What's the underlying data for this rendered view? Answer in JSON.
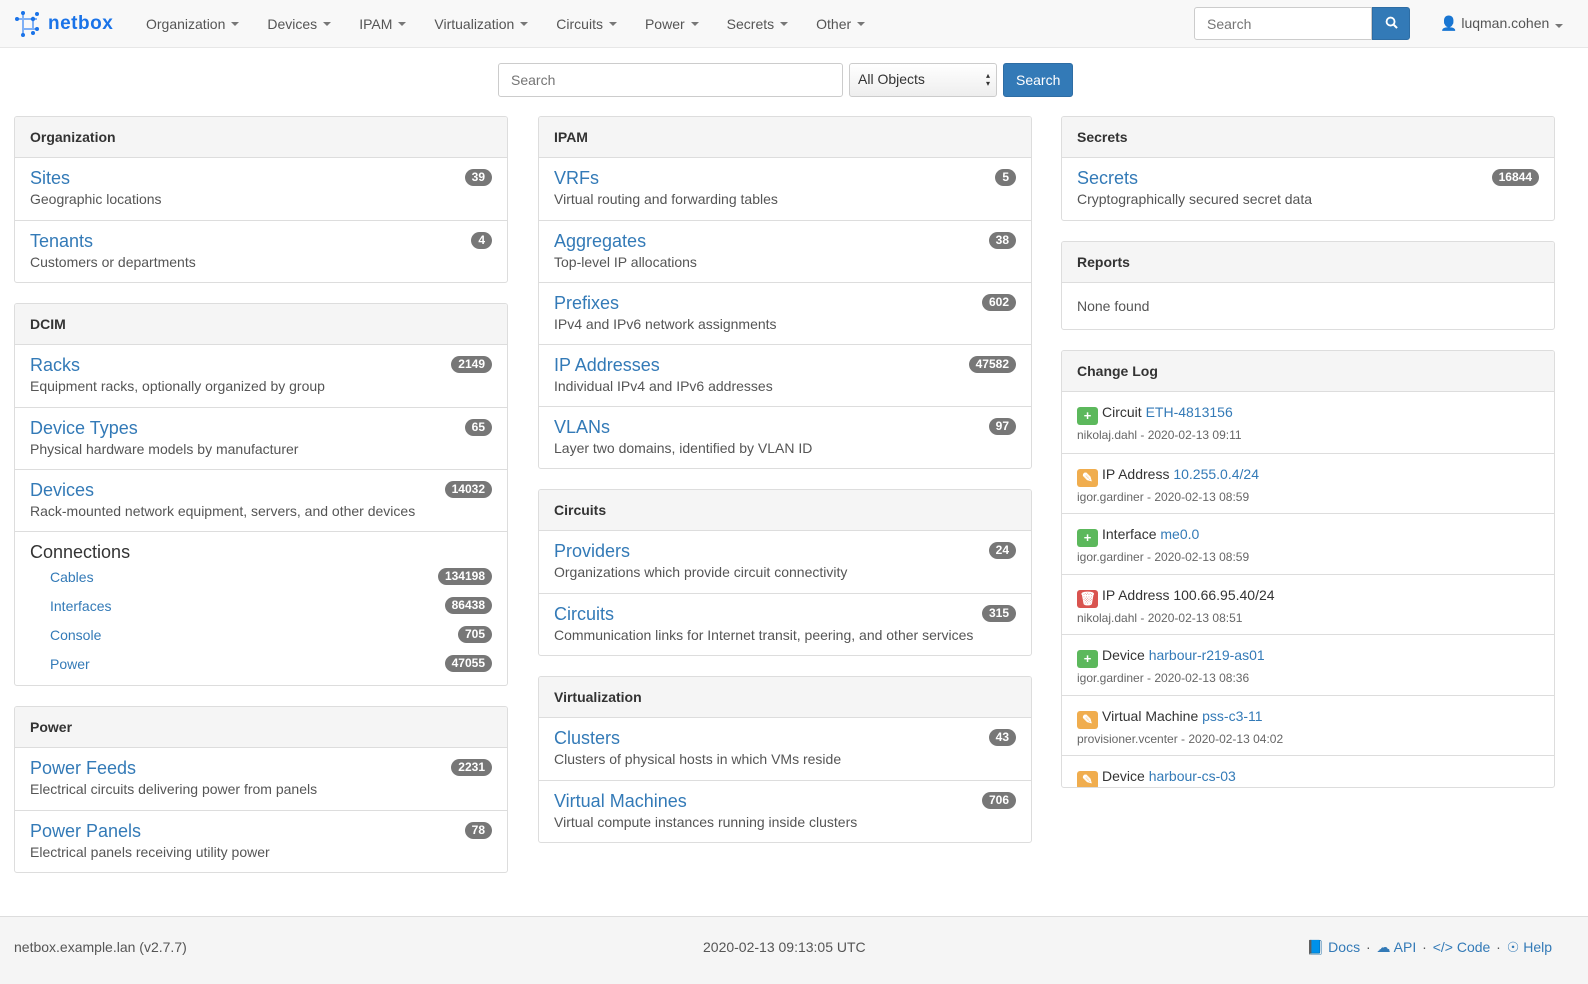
{
  "brand": "netbox",
  "nav": [
    "Organization",
    "Devices",
    "IPAM",
    "Virtualization",
    "Circuits",
    "Power",
    "Secrets",
    "Other"
  ],
  "nav_search": {
    "placeholder": "Search"
  },
  "user": "luqman.cohen",
  "search": {
    "placeholder": "Search",
    "scope": "All Objects",
    "button": "Search"
  },
  "columns": [
    [
      {
        "title": "Organization",
        "items": [
          {
            "label": "Sites",
            "desc": "Geographic locations",
            "count": "39"
          },
          {
            "label": "Tenants",
            "desc": "Customers or departments",
            "count": "4"
          }
        ]
      },
      {
        "title": "DCIM",
        "items": [
          {
            "label": "Racks",
            "desc": "Equipment racks, optionally organized by group",
            "count": "2149"
          },
          {
            "label": "Device Types",
            "desc": "Physical hardware models by manufacturer",
            "count": "65"
          },
          {
            "label": "Devices",
            "desc": "Rack-mounted network equipment, servers, and other devices",
            "count": "14032"
          }
        ],
        "connections": {
          "title": "Connections",
          "items": [
            {
              "label": "Cables",
              "count": "134198"
            },
            {
              "label": "Interfaces",
              "count": "86438"
            },
            {
              "label": "Console",
              "count": "705"
            },
            {
              "label": "Power",
              "count": "47055"
            }
          ]
        }
      },
      {
        "title": "Power",
        "items": [
          {
            "label": "Power Feeds",
            "desc": "Electrical circuits delivering power from panels",
            "count": "2231"
          },
          {
            "label": "Power Panels",
            "desc": "Electrical panels receiving utility power",
            "count": "78"
          }
        ]
      }
    ],
    [
      {
        "title": "IPAM",
        "items": [
          {
            "label": "VRFs",
            "desc": "Virtual routing and forwarding tables",
            "count": "5"
          },
          {
            "label": "Aggregates",
            "desc": "Top-level IP allocations",
            "count": "38"
          },
          {
            "label": "Prefixes",
            "desc": "IPv4 and IPv6 network assignments",
            "count": "602"
          },
          {
            "label": "IP Addresses",
            "desc": "Individual IPv4 and IPv6 addresses",
            "count": "47582"
          },
          {
            "label": "VLANs",
            "desc": "Layer two domains, identified by VLAN ID",
            "count": "97"
          }
        ]
      },
      {
        "title": "Circuits",
        "items": [
          {
            "label": "Providers",
            "desc": "Organizations which provide circuit connectivity",
            "count": "24"
          },
          {
            "label": "Circuits",
            "desc": "Communication links for Internet transit, peering, and other services",
            "count": "315"
          }
        ]
      },
      {
        "title": "Virtualization",
        "items": [
          {
            "label": "Clusters",
            "desc": "Clusters of physical hosts in which VMs reside",
            "count": "43"
          },
          {
            "label": "Virtual Machines",
            "desc": "Virtual compute instances running inside clusters",
            "count": "706"
          }
        ]
      }
    ],
    [
      {
        "title": "Secrets",
        "items": [
          {
            "label": "Secrets",
            "desc": "Cryptographically secured secret data",
            "count": "16844"
          }
        ]
      },
      {
        "title": "Reports",
        "none": "None found"
      },
      {
        "title": "Change Log",
        "changelog": [
          {
            "action": "create",
            "type": "Circuit",
            "object": "ETH-4813156",
            "linked": true,
            "meta": "nikolaj.dahl - 2020-02-13 09:11"
          },
          {
            "action": "update",
            "type": "IP Address",
            "object": "10.255.0.4/24",
            "linked": true,
            "meta": "igor.gardiner - 2020-02-13 08:59"
          },
          {
            "action": "create",
            "type": "Interface",
            "object": "me0.0",
            "linked": true,
            "meta": "igor.gardiner - 2020-02-13 08:59"
          },
          {
            "action": "delete",
            "type": "IP Address",
            "object": "100.66.95.40/24",
            "linked": false,
            "meta": "nikolaj.dahl - 2020-02-13 08:51"
          },
          {
            "action": "create",
            "type": "Device",
            "object": "harbour-r219-as01",
            "linked": true,
            "meta": "igor.gardiner - 2020-02-13 08:36"
          },
          {
            "action": "update",
            "type": "Virtual Machine",
            "object": "pss-c3-11",
            "linked": true,
            "meta": "provisioner.vcenter - 2020-02-13 04:02"
          },
          {
            "action": "update",
            "type": "Device",
            "object": "harbour-cs-03",
            "linked": true,
            "meta": ""
          }
        ]
      }
    ]
  ],
  "action_colors": {
    "create": "#5cb85c",
    "update": "#f0ad4e",
    "delete": "#d9534f"
  },
  "footer": {
    "host": "netbox.example.lan (v2.7.7)",
    "time": "2020-02-13 09:13:05 UTC",
    "links": [
      "Docs",
      "API",
      "Code",
      "Help"
    ]
  }
}
